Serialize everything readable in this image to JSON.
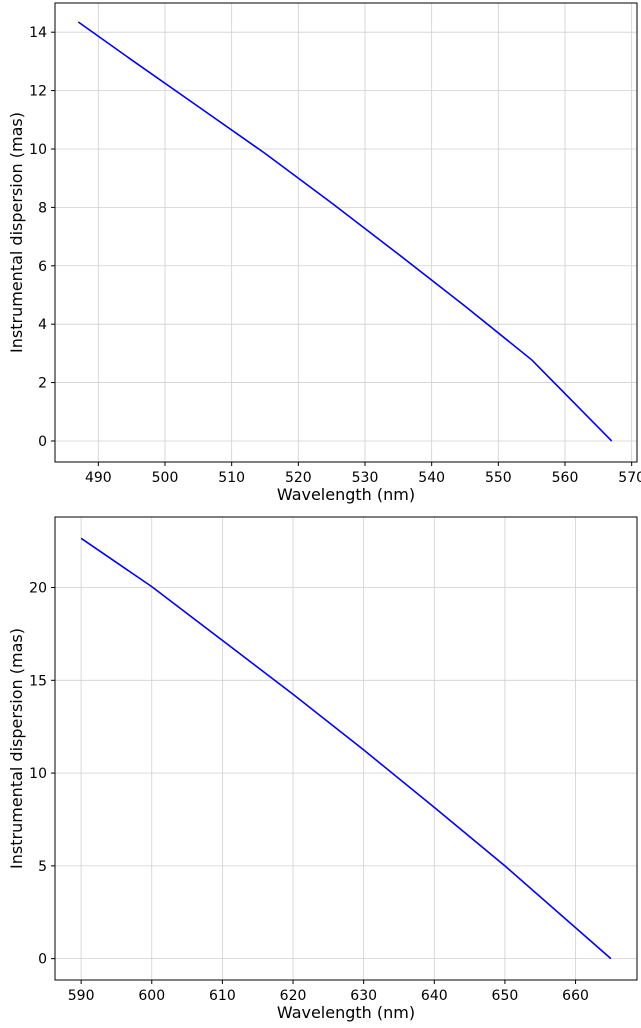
{
  "chart_data": [
    {
      "type": "line",
      "xlabel": "Wavelength (nm)",
      "ylabel": "Instrumental dispersion (mas)",
      "xlim": [
        483.5,
        570.8
      ],
      "ylim": [
        -0.72,
        15.0
      ],
      "xticks": [
        490,
        500,
        510,
        520,
        530,
        540,
        550,
        560,
        570
      ],
      "yticks": [
        0,
        2,
        4,
        6,
        8,
        10,
        12,
        14
      ],
      "grid": true,
      "line_color": "#0000ff",
      "series": [
        {
          "x": [
            487,
            495,
            505,
            515,
            525,
            535,
            545,
            555,
            567
          ],
          "y": [
            14.35,
            13.05,
            11.45,
            9.85,
            8.15,
            6.4,
            4.62,
            2.78,
            0.0
          ]
        }
      ]
    },
    {
      "type": "line",
      "xlabel": "Wavelength (nm)",
      "ylabel": "Instrumental dispersion (mas)",
      "xlim": [
        586.3,
        668.7
      ],
      "ylim": [
        -1.15,
        23.8
      ],
      "xticks": [
        590,
        600,
        610,
        620,
        630,
        640,
        650,
        660
      ],
      "yticks": [
        0,
        5,
        10,
        15,
        20
      ],
      "grid": true,
      "line_color": "#0000ff",
      "series": [
        {
          "x": [
            590,
            600,
            610,
            620,
            630,
            640,
            650,
            665
          ],
          "y": [
            22.65,
            20.05,
            17.15,
            14.25,
            11.25,
            8.15,
            5.0,
            0.0
          ]
        }
      ]
    }
  ]
}
